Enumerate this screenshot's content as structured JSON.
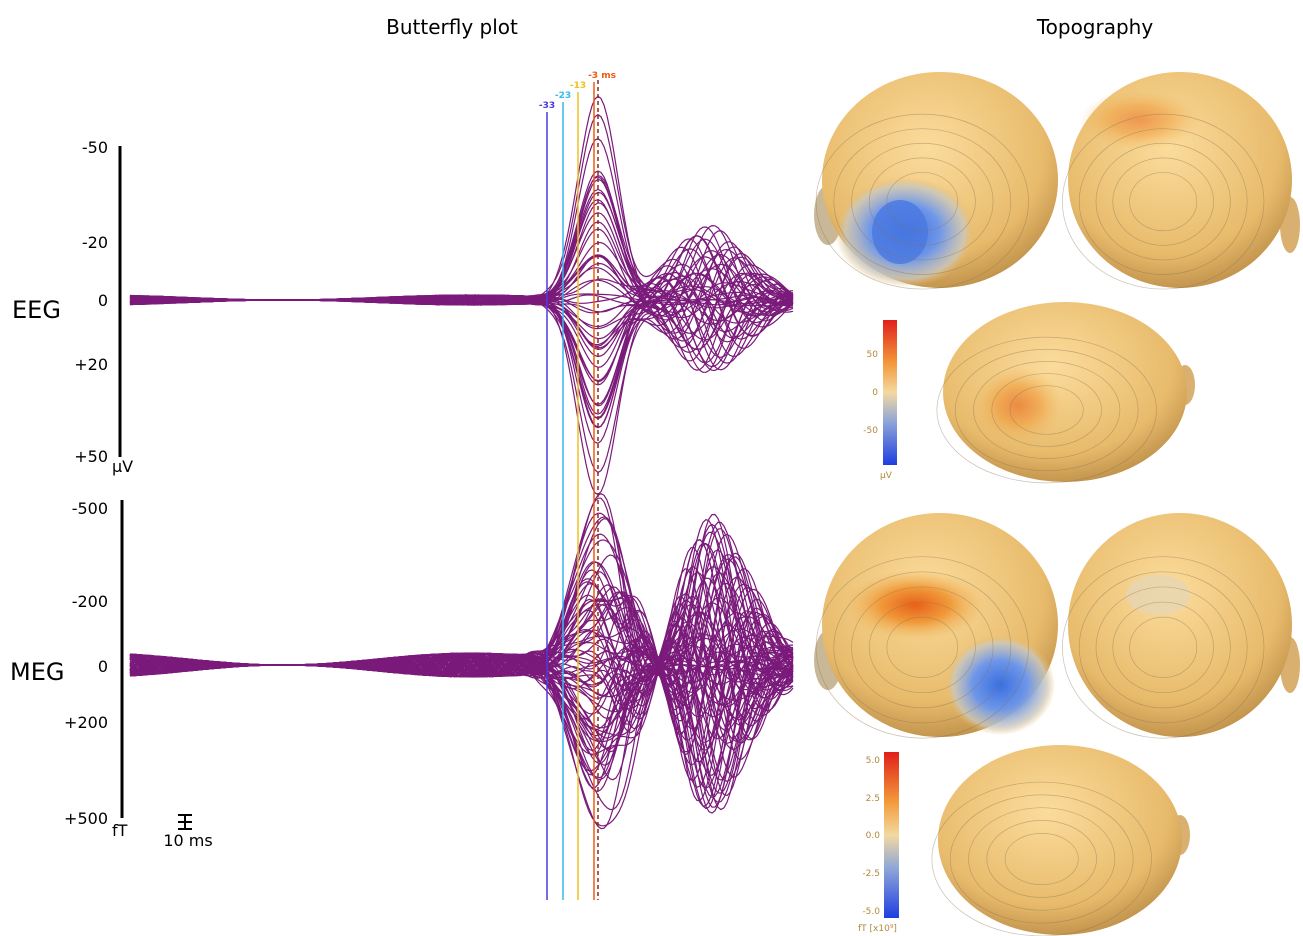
{
  "figure": {
    "butterfly": {
      "title": "Butterfly plot",
      "eeg": {
        "label": "EEG",
        "ticks": [
          "-50",
          "-20",
          "0",
          "+20",
          "+50"
        ],
        "unit": "µV"
      },
      "meg": {
        "label": "MEG",
        "ticks": [
          "-500",
          "-200",
          "0",
          "+200",
          "+500"
        ],
        "unit": "fT"
      },
      "scale_bar": "10 ms",
      "markers": [
        "-33",
        "-23",
        "-13",
        "-3 ms"
      ]
    },
    "topography": {
      "title": "Topography",
      "eeg_colorbar": {
        "ticks": [
          "50",
          "0",
          "-50"
        ],
        "unit": "µV"
      },
      "meg_colorbar": {
        "ticks": [
          "5.0",
          "2.5",
          "0.0",
          "-2.5",
          "-5.0"
        ],
        "unit": "fT [x10⁹]"
      }
    }
  }
}
